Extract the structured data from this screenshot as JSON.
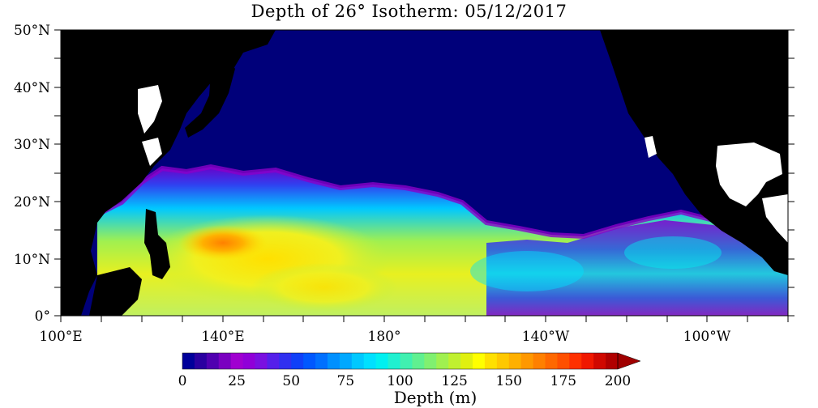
{
  "title": "Depth of 26° Isotherm: 05/12/2017",
  "lat_labels": [
    "50°N",
    "40°N",
    "30°N",
    "20°N",
    "10°N",
    "0°"
  ],
  "lon_labels": [
    "100°E",
    "140°E",
    "180°",
    "140°W",
    "100°W"
  ],
  "colorbar": {
    "title": "Depth (m)",
    "tick_labels": [
      "0",
      "25",
      "50",
      "75",
      "100",
      "125",
      "150",
      "175",
      "200"
    ],
    "colors": [
      "#00009a",
      "#2a00a0",
      "#5000b0",
      "#7a00c0",
      "#a000d0",
      "#9000d8",
      "#7a10e0",
      "#5520ea",
      "#3030f0",
      "#1040f8",
      "#0058ff",
      "#0070ff",
      "#0090ff",
      "#00a8ff",
      "#00c8ff",
      "#00e0ff",
      "#00f0f0",
      "#20f0d0",
      "#40f0b0",
      "#60f090",
      "#80f070",
      "#a0f050",
      "#c0f030",
      "#e0f010",
      "#ffff00",
      "#ffe000",
      "#ffc800",
      "#ffb000",
      "#ff9800",
      "#ff8000",
      "#ff6800",
      "#ff5000",
      "#ff3000",
      "#f01800",
      "#d00800",
      "#b00000"
    ],
    "overflow_color": "#a00000"
  },
  "colors": {
    "land": "#000000",
    "ocean_shallow": "#00007a",
    "lakes": "#ffffff"
  }
}
